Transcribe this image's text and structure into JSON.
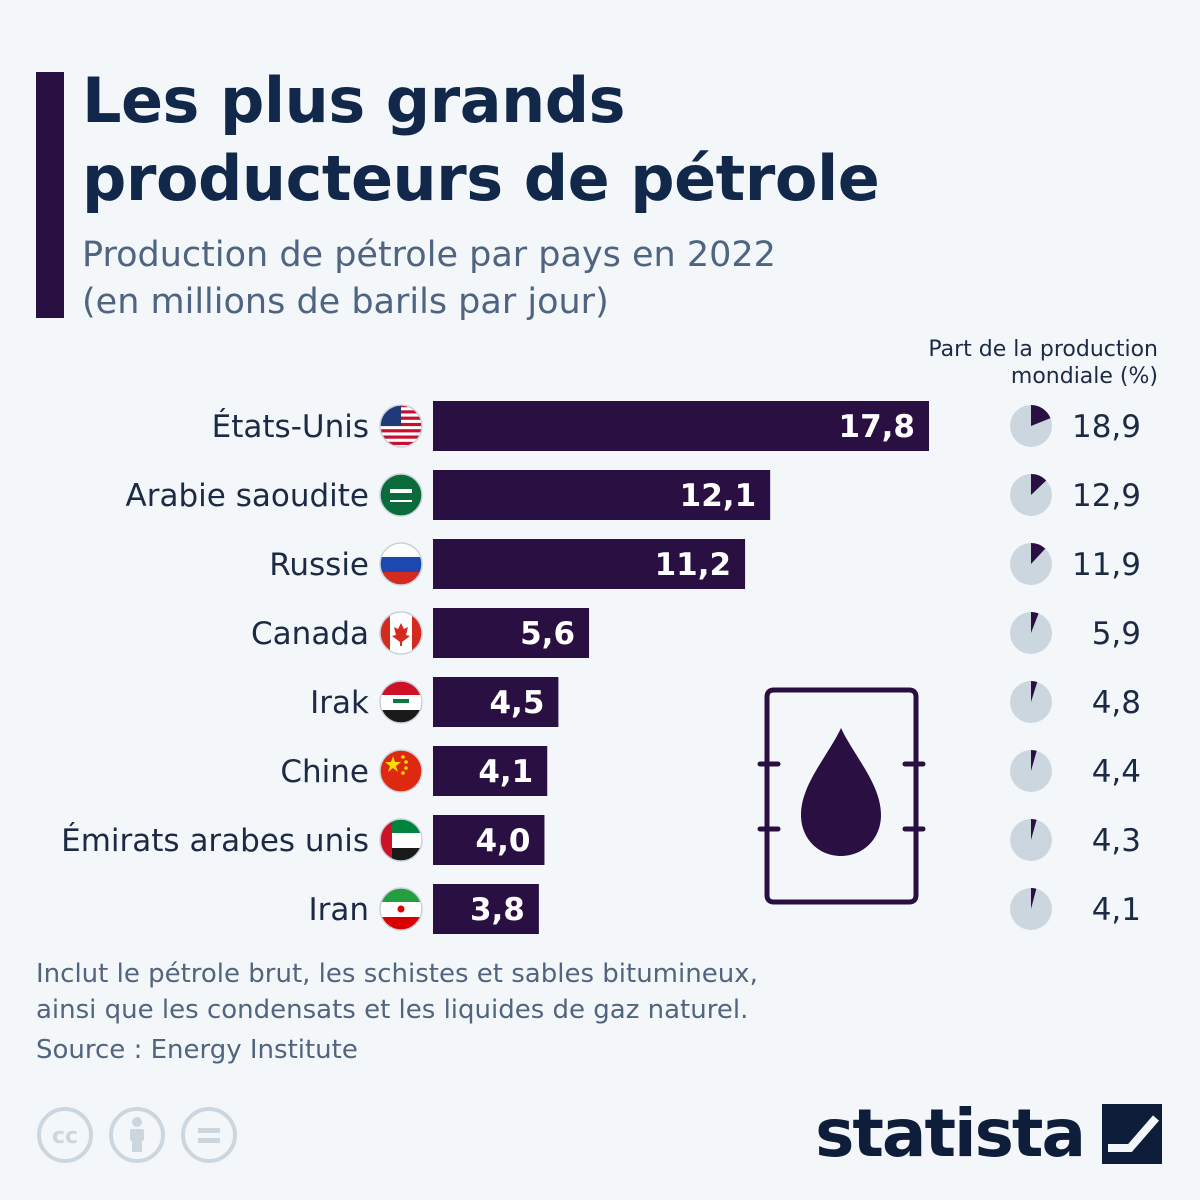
{
  "header": {
    "title_line1": "Les plus grands",
    "title_line2": "producteurs de pétrole",
    "subtitle_line1": "Production de pétrole par pays en 2022",
    "subtitle_line2": "(en millions de barils par jour)"
  },
  "share_header": {
    "line1": "Part de la production",
    "line2": "mondiale (%)"
  },
  "colors": {
    "bar": "#2a1042",
    "accent": "#2a1042",
    "pie_bg": "#ccd6df",
    "pie_fill": "#2a1042",
    "title": "#11284a",
    "subtitle": "#4f6481"
  },
  "chart_data": {
    "type": "bar",
    "orientation": "horizontal",
    "categories": [
      "États-Unis",
      "Arabie saoudite",
      "Russie",
      "Canada",
      "Irak",
      "Chine",
      "Émirats arabes unis",
      "Iran"
    ],
    "value_labels": [
      "17,8",
      "12,1",
      "11,2",
      "5,6",
      "4,5",
      "4,1",
      "4,0",
      "3,8"
    ],
    "values": [
      17.8,
      12.1,
      11.2,
      5.6,
      4.5,
      4.1,
      4.0,
      3.8
    ],
    "flags": [
      "flag-us-icon",
      "flag-saudi-arabia-icon",
      "flag-russia-icon",
      "flag-canada-icon",
      "flag-iraq-icon",
      "flag-china-icon",
      "flag-uae-icon",
      "flag-iran-icon"
    ],
    "share_labels": [
      "18,9",
      "12,9",
      "11,9",
      "5,9",
      "4,8",
      "4,4",
      "4,3",
      "4,1"
    ],
    "share_values": [
      18.9,
      12.9,
      11.9,
      5.9,
      4.8,
      4.4,
      4.3,
      4.1
    ],
    "xlim": [
      0,
      17.8
    ]
  },
  "decoration": {
    "icon": "oil-barrel-icon"
  },
  "footer": {
    "note_line1": "Inclut le pétrole brut, les schistes et sables bitumineux,",
    "note_line2": "ainsi que les condensats et les liquides de gaz naturel.",
    "source": "Source : Energy Institute",
    "license_icons": [
      "cc-icon",
      "attribution-icon",
      "no-derivatives-icon"
    ],
    "brand": "statista"
  }
}
